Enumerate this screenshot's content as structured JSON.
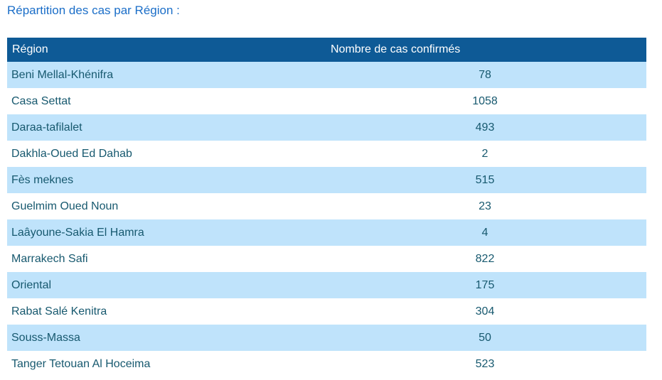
{
  "page": {
    "title": "Répartition des cas par Région :"
  },
  "table": {
    "headers": {
      "region": "Région",
      "cases": "Nombre de cas confirmés"
    },
    "rows": [
      {
        "region": "Beni Mellal-Khénifra",
        "cases": "78"
      },
      {
        "region": "Casa Settat",
        "cases": "1058"
      },
      {
        "region": "Daraa-tafilalet",
        "cases": "493"
      },
      {
        "region": "Dakhla-Oued Ed Dahab",
        "cases": "2"
      },
      {
        "region": "Fès meknes",
        "cases": "515"
      },
      {
        "region": "Guelmim Oued Noun",
        "cases": "23"
      },
      {
        "region": "Laâyoune-Sakia El Hamra",
        "cases": "4"
      },
      {
        "region": "Marrakech Safi",
        "cases": "822"
      },
      {
        "region": "Oriental",
        "cases": "175"
      },
      {
        "region": "Rabat Salé Kenitra",
        "cases": "304"
      },
      {
        "region": "Souss-Massa",
        "cases": "50"
      },
      {
        "region": "Tanger Tetouan Al Hoceima",
        "cases": "523"
      }
    ],
    "colors": {
      "header_bg": "#0e5a96",
      "header_text": "#ffffff",
      "row_alt_bg": "#bfe3fb",
      "row_bg": "#ffffff",
      "cell_text": "#17596f",
      "title_text": "#1b6ec8"
    }
  }
}
